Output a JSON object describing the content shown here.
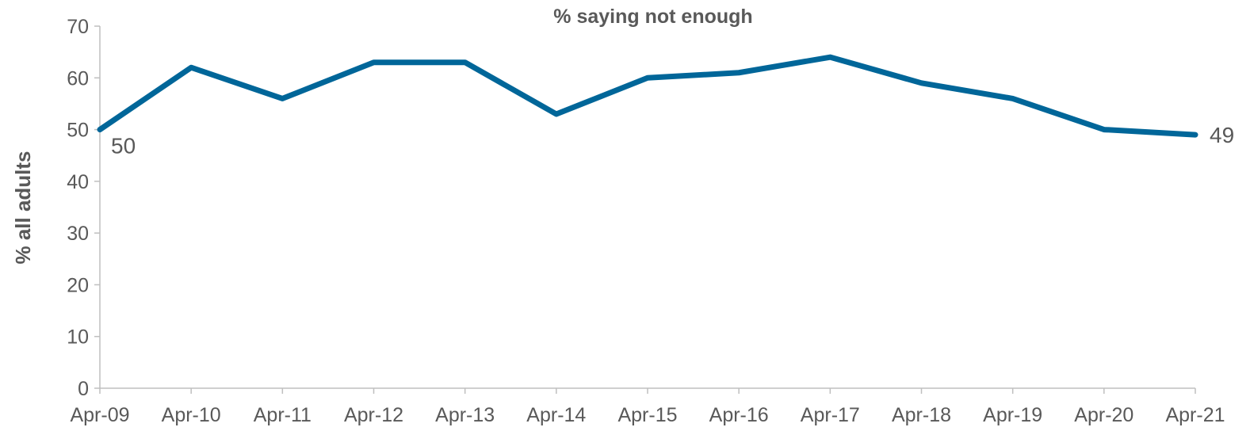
{
  "chart_data": {
    "type": "line",
    "title": "% saying not enough",
    "xlabel": "",
    "ylabel": "% all adults",
    "categories": [
      "Apr-09",
      "Apr-10",
      "Apr-11",
      "Apr-12",
      "Apr-13",
      "Apr-14",
      "Apr-15",
      "Apr-16",
      "Apr-17",
      "Apr-18",
      "Apr-19",
      "Apr-20",
      "Apr-21"
    ],
    "series": [
      {
        "values": [
          50,
          62,
          56,
          63,
          63,
          53,
          60,
          61,
          64,
          59,
          56,
          50,
          49
        ],
        "color": "#006699"
      }
    ],
    "ylim": [
      0,
      70
    ],
    "yticks": [
      0,
      10,
      20,
      30,
      40,
      50,
      60,
      70
    ],
    "grid": false,
    "legend": "none",
    "data_labels": [
      {
        "index": 0,
        "text": "50"
      },
      {
        "index": 12,
        "text": "49"
      }
    ]
  }
}
